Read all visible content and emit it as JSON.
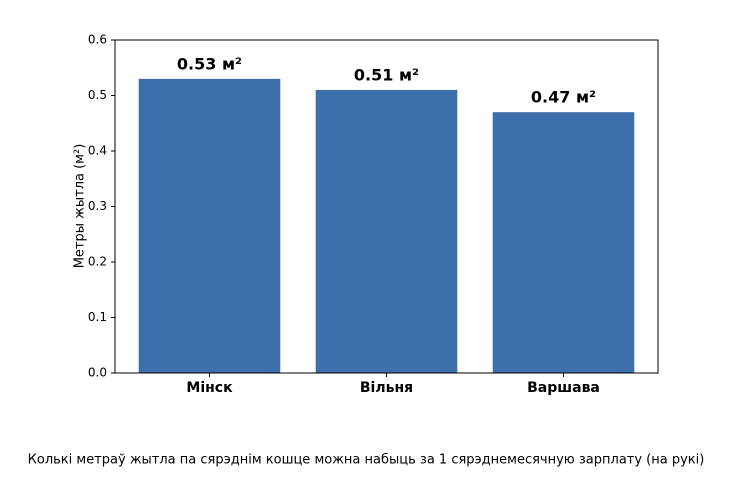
{
  "chart_data": {
    "type": "bar",
    "caption": "Колькі метраў жытла па сярэднім кошце можна набыць за 1 сярэднемесячную зарплату (на рукі)",
    "ylabel": "Метры жытла (м²)",
    "categories": [
      "Мінск",
      "Вільня",
      "Варшава"
    ],
    "values": [
      0.53,
      0.51,
      0.47
    ],
    "value_labels": [
      "0.53 м²",
      "0.51 м²",
      "0.47 м²"
    ],
    "color": "#3d70ab",
    "ylim": [
      0,
      0.6
    ],
    "yticks": [
      {
        "value": 0,
        "label": "0.0"
      },
      0.1,
      0.2,
      0.3,
      0.4,
      0.5,
      0.6
    ],
    "grid": false
  }
}
